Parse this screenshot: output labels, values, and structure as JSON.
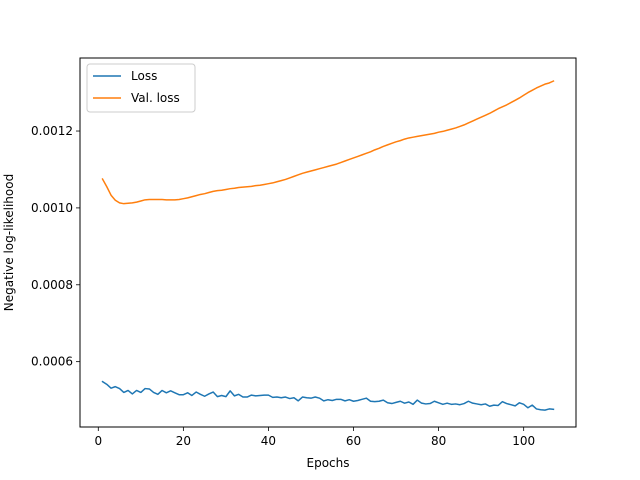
{
  "chart_data": {
    "type": "line",
    "title": "",
    "xlabel": "Epochs",
    "ylabel": "Negative log-likelihood",
    "xlim": [
      -4.3,
      112.3
    ],
    "ylim": [
      0.00043,
      0.00139
    ],
    "xticks": [
      0,
      20,
      40,
      60,
      80,
      100
    ],
    "xtick_labels": [
      "0",
      "20",
      "40",
      "60",
      "80",
      "100"
    ],
    "yticks": [
      0.0006,
      0.0008,
      0.001,
      0.0012
    ],
    "ytick_labels": [
      "0.0006",
      "0.0008",
      "0.0010",
      "0.0012"
    ],
    "grid": false,
    "legend_position": "top-left",
    "series": [
      {
        "name": "Loss",
        "color": "#1f77b4",
        "x": [
          1,
          2,
          3,
          4,
          5,
          6,
          7,
          8,
          9,
          10,
          11,
          12,
          13,
          14,
          15,
          16,
          17,
          18,
          19,
          20,
          21,
          22,
          23,
          24,
          25,
          26,
          27,
          28,
          29,
          30,
          31,
          32,
          33,
          34,
          35,
          36,
          37,
          38,
          39,
          40,
          41,
          42,
          43,
          44,
          45,
          46,
          47,
          48,
          49,
          50,
          51,
          52,
          53,
          54,
          55,
          56,
          57,
          58,
          59,
          60,
          61,
          62,
          63,
          64,
          65,
          66,
          67,
          68,
          69,
          70,
          71,
          72,
          73,
          74,
          75,
          76,
          77,
          78,
          79,
          80,
          81,
          82,
          83,
          84,
          85,
          86,
          87,
          88,
          89,
          90,
          91,
          92,
          93,
          94,
          95,
          96,
          97,
          98,
          99,
          100,
          101,
          102,
          103,
          104,
          105,
          106,
          107
        ],
        "values": [
          0.000548,
          0.000541,
          0.000531,
          0.000535,
          0.00053,
          0.00052,
          0.000525,
          0.000516,
          0.000525,
          0.00052,
          0.00053,
          0.000529,
          0.00052,
          0.000515,
          0.000525,
          0.000519,
          0.000524,
          0.000519,
          0.000514,
          0.000514,
          0.000519,
          0.000512,
          0.000521,
          0.000515,
          0.00051,
          0.000516,
          0.000521,
          0.000509,
          0.000512,
          0.000509,
          0.000524,
          0.000511,
          0.000515,
          0.000508,
          0.000508,
          0.000513,
          0.000511,
          0.000512,
          0.000513,
          0.000513,
          0.000507,
          0.000508,
          0.000506,
          0.000508,
          0.000504,
          0.000506,
          0.000498,
          0.000508,
          0.000506,
          0.000505,
          0.000508,
          0.000505,
          0.000498,
          0.000501,
          0.000499,
          0.000502,
          0.000502,
          0.000498,
          0.000501,
          0.000497,
          0.000499,
          0.000502,
          0.000505,
          0.000497,
          0.000496,
          0.000497,
          0.0005,
          0.000493,
          0.000491,
          0.000494,
          0.000497,
          0.000492,
          0.000495,
          0.000489,
          0.0005,
          0.000492,
          0.00049,
          0.000491,
          0.000497,
          0.000493,
          0.000489,
          0.000492,
          0.000489,
          0.00049,
          0.000488,
          0.000491,
          0.000497,
          0.000492,
          0.00049,
          0.000488,
          0.00049,
          0.000484,
          0.000487,
          0.000486,
          0.000496,
          0.000491,
          0.000488,
          0.000485,
          0.000493,
          0.000489,
          0.00048,
          0.000487,
          0.000477,
          0.000475,
          0.000474,
          0.000477,
          0.000476
        ]
      },
      {
        "name": "Val. loss",
        "color": "#ff7f0e",
        "x": [
          1,
          2,
          3,
          4,
          5,
          6,
          7,
          8,
          9,
          10,
          11,
          12,
          13,
          14,
          15,
          16,
          17,
          18,
          19,
          20,
          21,
          22,
          23,
          24,
          25,
          26,
          27,
          28,
          29,
          30,
          31,
          32,
          33,
          34,
          35,
          36,
          37,
          38,
          39,
          40,
          41,
          42,
          43,
          44,
          45,
          46,
          47,
          48,
          49,
          50,
          51,
          52,
          53,
          54,
          55,
          56,
          57,
          58,
          59,
          60,
          61,
          62,
          63,
          64,
          65,
          66,
          67,
          68,
          69,
          70,
          71,
          72,
          73,
          74,
          75,
          76,
          77,
          78,
          79,
          80,
          81,
          82,
          83,
          84,
          85,
          86,
          87,
          88,
          89,
          90,
          91,
          92,
          93,
          94,
          95,
          96,
          97,
          98,
          99,
          100,
          101,
          102,
          103,
          104,
          105,
          106,
          107
        ],
        "values": [
          0.001075,
          0.001055,
          0.001033,
          0.00102,
          0.001013,
          0.001011,
          0.001012,
          0.001013,
          0.001015,
          0.001018,
          0.001021,
          0.001022,
          0.001022,
          0.001022,
          0.001022,
          0.001021,
          0.001021,
          0.001021,
          0.001022,
          0.001024,
          0.001026,
          0.001029,
          0.001032,
          0.001035,
          0.001037,
          0.00104,
          0.001043,
          0.001045,
          0.001046,
          0.001048,
          0.00105,
          0.001051,
          0.001053,
          0.001054,
          0.001055,
          0.001056,
          0.001058,
          0.001059,
          0.001061,
          0.001063,
          0.001065,
          0.001068,
          0.001071,
          0.001074,
          0.001078,
          0.001082,
          0.001086,
          0.00109,
          0.001093,
          0.001096,
          0.001099,
          0.001102,
          0.001105,
          0.001108,
          0.001111,
          0.001114,
          0.001118,
          0.001122,
          0.001126,
          0.00113,
          0.001134,
          0.001138,
          0.001142,
          0.001146,
          0.001151,
          0.001155,
          0.00116,
          0.001164,
          0.001168,
          0.001172,
          0.001175,
          0.001179,
          0.001182,
          0.001184,
          0.001186,
          0.001188,
          0.00119,
          0.001192,
          0.001194,
          0.001197,
          0.001199,
          0.001202,
          0.001205,
          0.001208,
          0.001212,
          0.001216,
          0.001221,
          0.001226,
          0.001231,
          0.001236,
          0.001241,
          0.001246,
          0.001252,
          0.001258,
          0.001263,
          0.001268,
          0.001274,
          0.00128,
          0.001286,
          0.001293,
          0.0013,
          0.001306,
          0.001312,
          0.001317,
          0.001322,
          0.001325,
          0.00133
        ]
      }
    ]
  }
}
